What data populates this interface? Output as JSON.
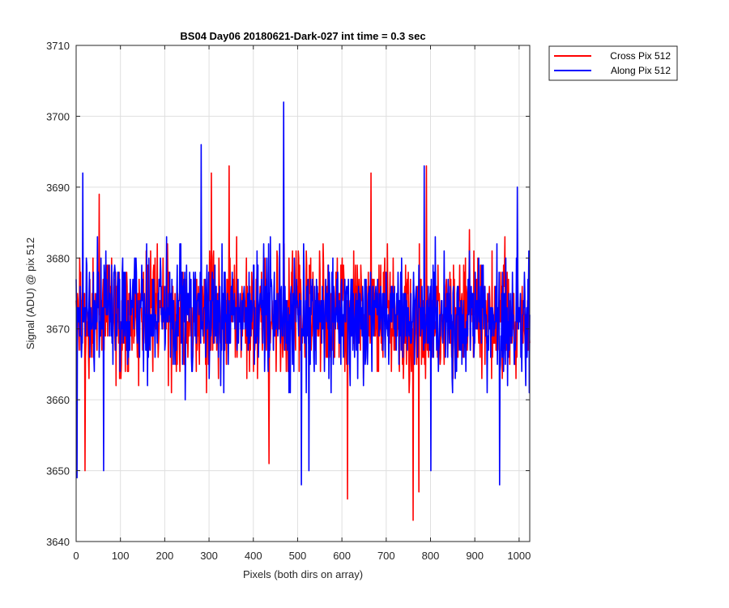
{
  "chart_data": {
    "type": "line",
    "title": "BS04 Day06 20180621-Dark-027 int time = 0.3 sec",
    "xlabel": "Pixels (both dirs on array)",
    "ylabel": "Signal (ADU) @ pix 512",
    "xlim": [
      0,
      1024
    ],
    "ylim": [
      3640,
      3710
    ],
    "xticks": [
      0,
      100,
      200,
      300,
      400,
      500,
      600,
      700,
      800,
      900,
      1000
    ],
    "yticks": [
      3640,
      3650,
      3660,
      3670,
      3680,
      3690,
      3700,
      3710
    ],
    "grid": true,
    "legend_position": "outside-top-right",
    "noise": {
      "points_per_series": 1024,
      "baseline": 3672,
      "typical_low": 3660,
      "typical_high": 3684
    },
    "series": [
      {
        "name": "Cross Pix 512",
        "color": "#ff0000",
        "seed": 9173,
        "extremes": [
          {
            "x": 20,
            "y": 3650
          },
          {
            "x": 52,
            "y": 3689
          },
          {
            "x": 305,
            "y": 3692
          },
          {
            "x": 345,
            "y": 3693
          },
          {
            "x": 435,
            "y": 3651
          },
          {
            "x": 612,
            "y": 3646
          },
          {
            "x": 665,
            "y": 3692
          },
          {
            "x": 760,
            "y": 3643
          },
          {
            "x": 773,
            "y": 3647
          },
          {
            "x": 790,
            "y": 3693
          }
        ]
      },
      {
        "name": "Along Pix 512",
        "color": "#0000ff",
        "seed": 4421,
        "extremes": [
          {
            "x": 2,
            "y": 3649
          },
          {
            "x": 15,
            "y": 3692
          },
          {
            "x": 62,
            "y": 3650
          },
          {
            "x": 282,
            "y": 3696
          },
          {
            "x": 468,
            "y": 3702
          },
          {
            "x": 508,
            "y": 3648
          },
          {
            "x": 525,
            "y": 3650
          },
          {
            "x": 785,
            "y": 3693
          },
          {
            "x": 800,
            "y": 3650
          },
          {
            "x": 955,
            "y": 3648
          },
          {
            "x": 995,
            "y": 3690
          }
        ]
      }
    ]
  }
}
